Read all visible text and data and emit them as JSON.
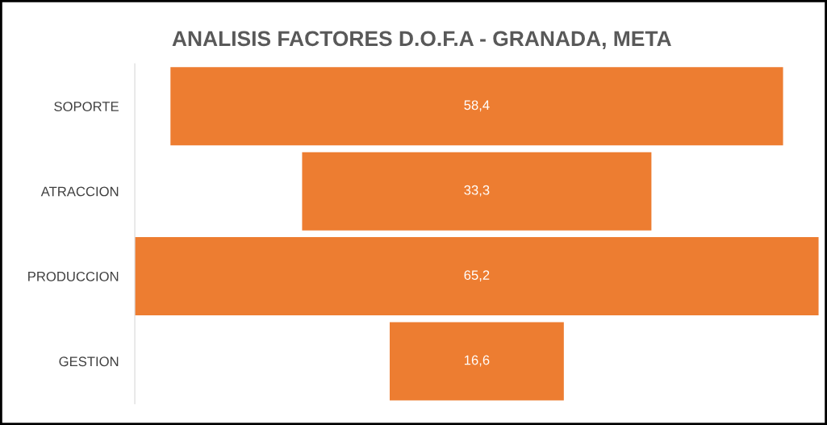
{
  "chart_data": {
    "type": "other",
    "title": "ANALISIS FACTORES D.O.F.A - GRANADA, META",
    "categories": [
      "SOPORTE",
      "ATRACCION",
      "PRODUCCION",
      "GESTION"
    ],
    "values": [
      58.4,
      33.3,
      65.2,
      16.6
    ],
    "value_labels": [
      "58,4",
      "33,3",
      "65,2",
      "16,6"
    ],
    "color": "#ed7d31"
  }
}
